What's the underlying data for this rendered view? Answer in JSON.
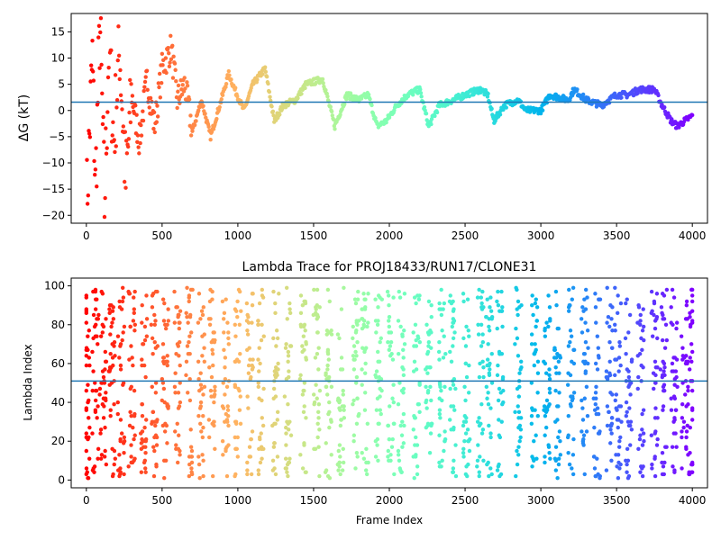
{
  "chart_data": [
    {
      "type": "scatter",
      "title": "",
      "xlabel": "",
      "ylabel": "ΔG (kT)",
      "xlim": [
        -100,
        4100
      ],
      "ylim": [
        -21.5,
        18.5
      ],
      "xticks": [
        0,
        500,
        1000,
        1500,
        2000,
        2500,
        3000,
        3500,
        4000
      ],
      "yticks": [
        -20,
        -15,
        -10,
        -5,
        0,
        5,
        10,
        15
      ],
      "hline": 1.6,
      "hline_color": "#1f77b4",
      "colormap": "rainbow",
      "color_by": "frame index, red (frame 0) to violet (frame 4000)",
      "segments": [
        [
          0,
          -20
        ],
        [
          40,
          10
        ],
        [
          60,
          -15
        ],
        [
          90,
          17
        ],
        [
          120,
          -18
        ],
        [
          150,
          14
        ],
        [
          180,
          -6
        ],
        [
          220,
          12
        ],
        [
          260,
          -14
        ],
        [
          300,
          3
        ],
        [
          350,
          -6
        ],
        [
          400,
          6
        ],
        [
          450,
          -3
        ],
        [
          500,
          8
        ],
        [
          560,
          12
        ],
        [
          600,
          2
        ],
        [
          650,
          5
        ],
        [
          700,
          -4
        ],
        [
          760,
          2
        ],
        [
          820,
          -5
        ],
        [
          880,
          1
        ],
        [
          940,
          7
        ],
        [
          980,
          4
        ],
        [
          1040,
          0
        ],
        [
          1100,
          5
        ],
        [
          1180,
          8
        ],
        [
          1240,
          -2
        ],
        [
          1300,
          1
        ],
        [
          1380,
          2
        ],
        [
          1450,
          5
        ],
        [
          1560,
          6
        ],
        [
          1640,
          -3
        ],
        [
          1720,
          3
        ],
        [
          1800,
          2
        ],
        [
          1860,
          3
        ],
        [
          1920,
          -3
        ],
        [
          1980,
          -2
        ],
        [
          2050,
          1
        ],
        [
          2120,
          3
        ],
        [
          2200,
          4
        ],
        [
          2260,
          -3
        ],
        [
          2330,
          1
        ],
        [
          2420,
          2
        ],
        [
          2500,
          3
        ],
        [
          2600,
          4
        ],
        [
          2650,
          3
        ],
        [
          2690,
          -2
        ],
        [
          2760,
          1
        ],
        [
          2850,
          2
        ],
        [
          2900,
          0
        ],
        [
          3000,
          0
        ],
        [
          3060,
          3
        ],
        [
          3180,
          2
        ],
        [
          3220,
          4
        ],
        [
          3300,
          2
        ],
        [
          3400,
          1
        ],
        [
          3500,
          3
        ],
        [
          3580,
          3
        ],
        [
          3650,
          4
        ],
        [
          3750,
          4
        ],
        [
          3800,
          1
        ],
        [
          3860,
          -2
        ],
        [
          3900,
          -3
        ],
        [
          3950,
          -2
        ],
        [
          4000,
          -1
        ]
      ]
    },
    {
      "type": "scatter",
      "title": "Lambda Trace for PROJ18433/RUN17/CLONE31",
      "xlabel": "Frame Index",
      "ylabel": "Lambda Index",
      "xlim": [
        -100,
        4100
      ],
      "ylim": [
        -4,
        104
      ],
      "xticks": [
        0,
        500,
        1000,
        1500,
        2000,
        2500,
        3000,
        3500,
        4000
      ],
      "yticks": [
        0,
        20,
        40,
        60,
        80,
        100
      ],
      "hline": 51,
      "hline_color": "#1f77b4",
      "colormap": "rainbow",
      "color_by": "frame index, red (frame 0) to violet (frame 4000)",
      "band_centers": [
        0,
        60,
        110,
        170,
        230,
        300,
        380,
        450,
        520,
        600,
        680,
        760,
        830,
        920,
        1000,
        1080,
        1150,
        1250,
        1330,
        1430,
        1520,
        1600,
        1680,
        1780,
        1840,
        1930,
        2010,
        2080,
        2180,
        2260,
        2350,
        2420,
        2510,
        2600,
        2660,
        2730,
        2850,
        2960,
        3040,
        3110,
        3200,
        3290,
        3370,
        3450,
        3510,
        3580,
        3660,
        3750,
        3810,
        3880,
        3950,
        4000
      ]
    }
  ]
}
